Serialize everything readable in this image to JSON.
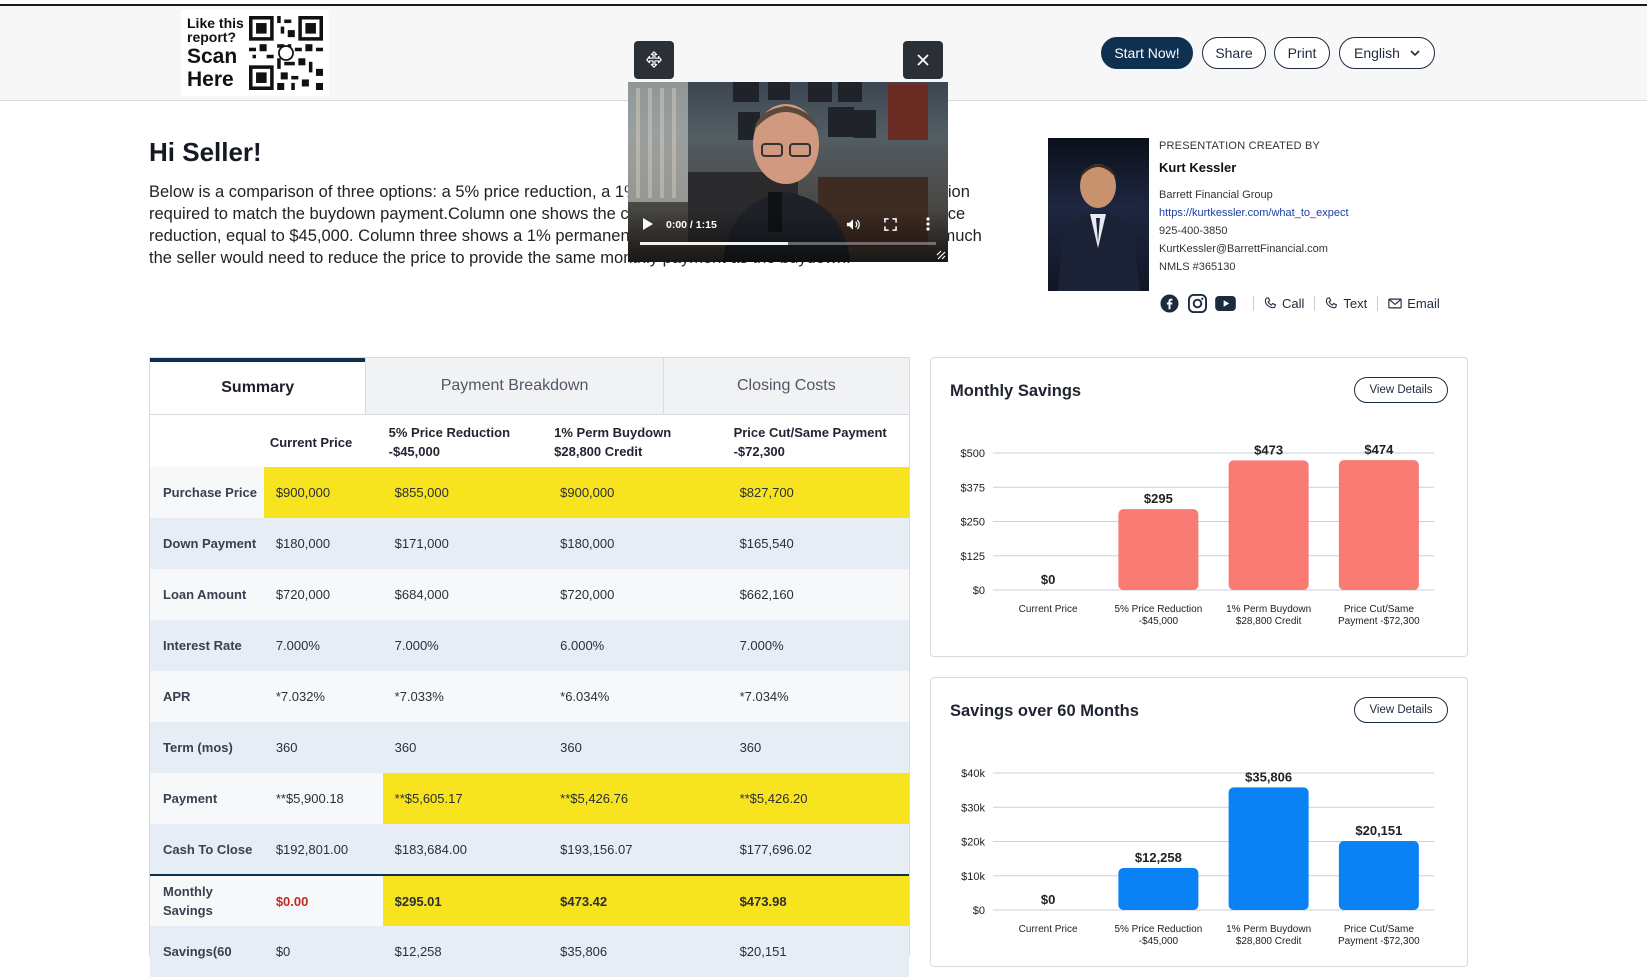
{
  "header": {
    "qr_line1": "Like this",
    "qr_line2": "report?",
    "qr_line3": "Scan",
    "qr_line4": "Here",
    "buttons": {
      "start": "Start Now!",
      "share": "Share",
      "print": "Print",
      "language": "English"
    }
  },
  "intro": {
    "greeting": "Hi Seller!",
    "paragraph": "Below is a comparison of three options: a 5% price reduction, a 1% permanent buydown, and the price reduction required to match the buydown payment.Column one shows the current price. Column two illustrates a 5% price reduction, equal to $45,000. Column three shows a 1% permanent buydown to 6%. Column four shows how much the seller would need to reduce the price to provide the same monthly payment as the buydown."
  },
  "agent": {
    "created_by_label": "PRESENTATION CREATED BY",
    "name": "Kurt Kessler",
    "company": "Barrett Financial Group",
    "website": "https://kurtkessler.com/what_to_expect",
    "phone": "925-400-3850",
    "email": "KurtKessler@BarrettFinancial.com",
    "nmls": "NMLS #365130",
    "actions": {
      "call": "Call",
      "text": "Text",
      "email": "Email"
    }
  },
  "tabs": [
    "Summary",
    "Payment Breakdown",
    "Closing Costs"
  ],
  "table": {
    "columns": [
      "",
      "Current Price",
      "5% Price Reduction -$45,000",
      "1% Perm Buydown $28,800 Credit",
      "Price Cut/Same Payment -$72,300"
    ],
    "columns_line1": [
      "",
      "Current Price",
      "5% Price Reduction",
      "1% Perm Buydown",
      "Price Cut/Same Payment"
    ],
    "columns_line2": [
      "",
      "",
      "-$45,000",
      "$28,800 Credit",
      "-$72,300"
    ],
    "rows": [
      {
        "label": "Purchase Price",
        "values": [
          "$900,000",
          "$855,000",
          "$900,000",
          "$827,700"
        ]
      },
      {
        "label": "Down Payment",
        "values": [
          "$180,000",
          "$171,000",
          "$180,000",
          "$165,540"
        ]
      },
      {
        "label": "Loan Amount",
        "values": [
          "$720,000",
          "$684,000",
          "$720,000",
          "$662,160"
        ]
      },
      {
        "label": "Interest Rate",
        "values": [
          "7.000%",
          "7.000%",
          "6.000%",
          "7.000%"
        ]
      },
      {
        "label": "APR",
        "values": [
          "*7.032%",
          "*7.033%",
          "*6.034%",
          "*7.034%"
        ]
      },
      {
        "label": "Term (mos)",
        "values": [
          "360",
          "360",
          "360",
          "360"
        ]
      },
      {
        "label": "Payment",
        "values": [
          "**$5,900.18",
          "**$5,605.17",
          "**$5,426.76",
          "**$5,426.20"
        ]
      },
      {
        "label": "Cash To Close",
        "values": [
          "$192,801.00",
          "$183,684.00",
          "$193,156.07",
          "$177,696.02"
        ]
      },
      {
        "label": "Monthly Savings",
        "values": [
          "$0.00",
          "$295.01",
          "$473.42",
          "$473.98"
        ]
      },
      {
        "label": "Savings(60",
        "values": [
          "$0",
          "$12,258",
          "$35,806",
          "$20,151"
        ]
      }
    ]
  },
  "charts": {
    "view_details": "View Details",
    "bar_colors": {
      "monthly": "#f97b73",
      "sixty": "#0a82f5"
    }
  },
  "chart_data": [
    {
      "type": "bar",
      "title": "Monthly Savings",
      "categories": [
        "Current Price",
        "5% Price Reduction -$45,000",
        "1% Perm Buydown $28,800 Credit",
        "Price Cut/Same Payment -$72,300"
      ],
      "category_lines": [
        [
          "Current Price"
        ],
        [
          "5% Price Reduction",
          "-$45,000"
        ],
        [
          "1% Perm Buydown",
          "$28,800 Credit"
        ],
        [
          "Price Cut/Same",
          "Payment -$72,300"
        ]
      ],
      "values": [
        0,
        295,
        473,
        474
      ],
      "data_labels": [
        "$0",
        "$295",
        "$473",
        "$474"
      ],
      "yticks": [
        "$0",
        "$125",
        "$250",
        "$375",
        "$500"
      ],
      "ylim": [
        0,
        500
      ],
      "grid": true
    },
    {
      "type": "bar",
      "title": "Savings over 60 Months",
      "categories": [
        "Current Price",
        "5% Price Reduction -$45,000",
        "1% Perm Buydown $28,800 Credit",
        "Price Cut/Same Payment -$72,300"
      ],
      "category_lines": [
        [
          "Current Price"
        ],
        [
          "5% Price Reduction",
          "-$45,000"
        ],
        [
          "1% Perm Buydown",
          "$28,800 Credit"
        ],
        [
          "Price Cut/Same",
          "Payment -$72,300"
        ]
      ],
      "values": [
        0,
        12258,
        35806,
        20151
      ],
      "data_labels": [
        "$0",
        "$12,258",
        "$35,806",
        "$20,151"
      ],
      "yticks": [
        "$0",
        "$10k",
        "$20k",
        "$30k",
        "$40k"
      ],
      "ylim": [
        0,
        40000
      ],
      "grid": true
    }
  ],
  "video": {
    "time": "0:00 / 1:15",
    "progress": 0.5
  }
}
